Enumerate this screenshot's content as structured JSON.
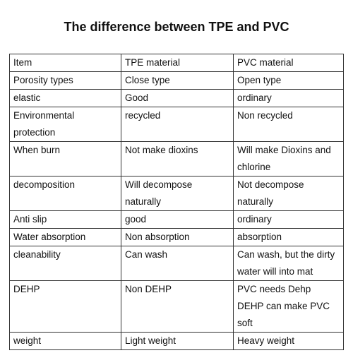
{
  "header": {
    "title": "The difference between TPE and PVC"
  },
  "table": {
    "rows": [
      [
        "Item",
        "TPE material",
        "PVC material"
      ],
      [
        "Porosity types",
        "Close type",
        "Open type"
      ],
      [
        "elastic",
        "Good",
        "ordinary"
      ],
      [
        "Environmental protection",
        "recycled",
        "Non recycled"
      ],
      [
        "When burn",
        "Not make dioxins",
        "Will make Dioxins and chlorine"
      ],
      [
        "decomposition",
        "Will decompose naturally",
        "Not decompose naturally"
      ],
      [
        "Anti slip",
        "good",
        "ordinary"
      ],
      [
        "Water absorption",
        "Non absorption",
        "absorption"
      ],
      [
        "cleanability",
        "Can wash",
        "Can wash, but the dirty water will into mat"
      ],
      [
        "DEHP",
        "Non DEHP",
        "PVC needs Dehp DEHP can make PVC soft"
      ],
      [
        "weight",
        "Light weight",
        "Heavy weight"
      ]
    ]
  }
}
